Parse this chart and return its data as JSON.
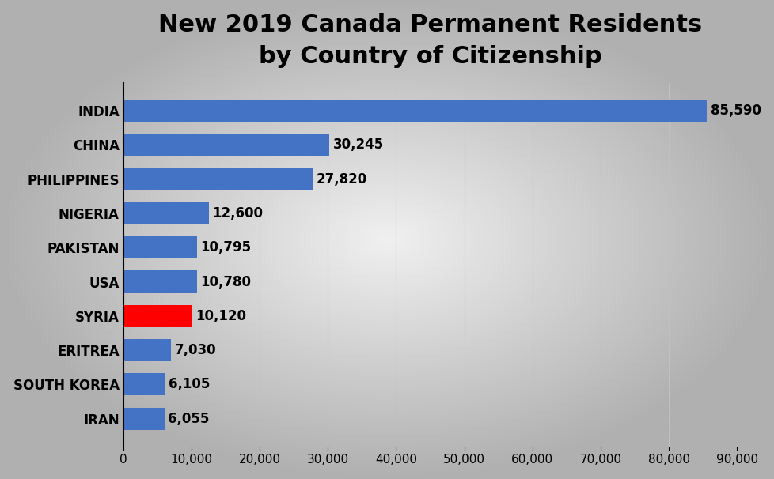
{
  "title_line1": "New 2019 Canada Permanent Residents",
  "title_line2": "by Country of Citizenship",
  "countries": [
    "IRAN",
    "SOUTH KOREA",
    "ERITREA",
    "SYRIA",
    "USA",
    "PAKISTAN",
    "NIGERIA",
    "PHILIPPINES",
    "CHINA",
    "INDIA"
  ],
  "values": [
    6055,
    6105,
    7030,
    10120,
    10780,
    10795,
    12600,
    27820,
    30245,
    85590
  ],
  "bar_colors": [
    "#4472c4",
    "#4472c4",
    "#4472c4",
    "#ff0000",
    "#4472c4",
    "#4472c4",
    "#4472c4",
    "#4472c4",
    "#4472c4",
    "#4472c4"
  ],
  "value_labels": [
    "6,055",
    "6,105",
    "7,030",
    "10,120",
    "10,780",
    "10,795",
    "12,600",
    "27,820",
    "30,245",
    "85,590"
  ],
  "xlim": [
    0,
    90000
  ],
  "xticks": [
    0,
    10000,
    20000,
    30000,
    40000,
    50000,
    60000,
    70000,
    80000,
    90000
  ],
  "bg_center": "#f0f0f0",
  "bg_edge": "#b0b0b0",
  "ax_bg": "#e8e8e8",
  "title_fontsize": 22,
  "bar_height": 0.65,
  "grid_color": "#c0c0c0",
  "label_fontsize": 12,
  "value_fontsize": 12
}
